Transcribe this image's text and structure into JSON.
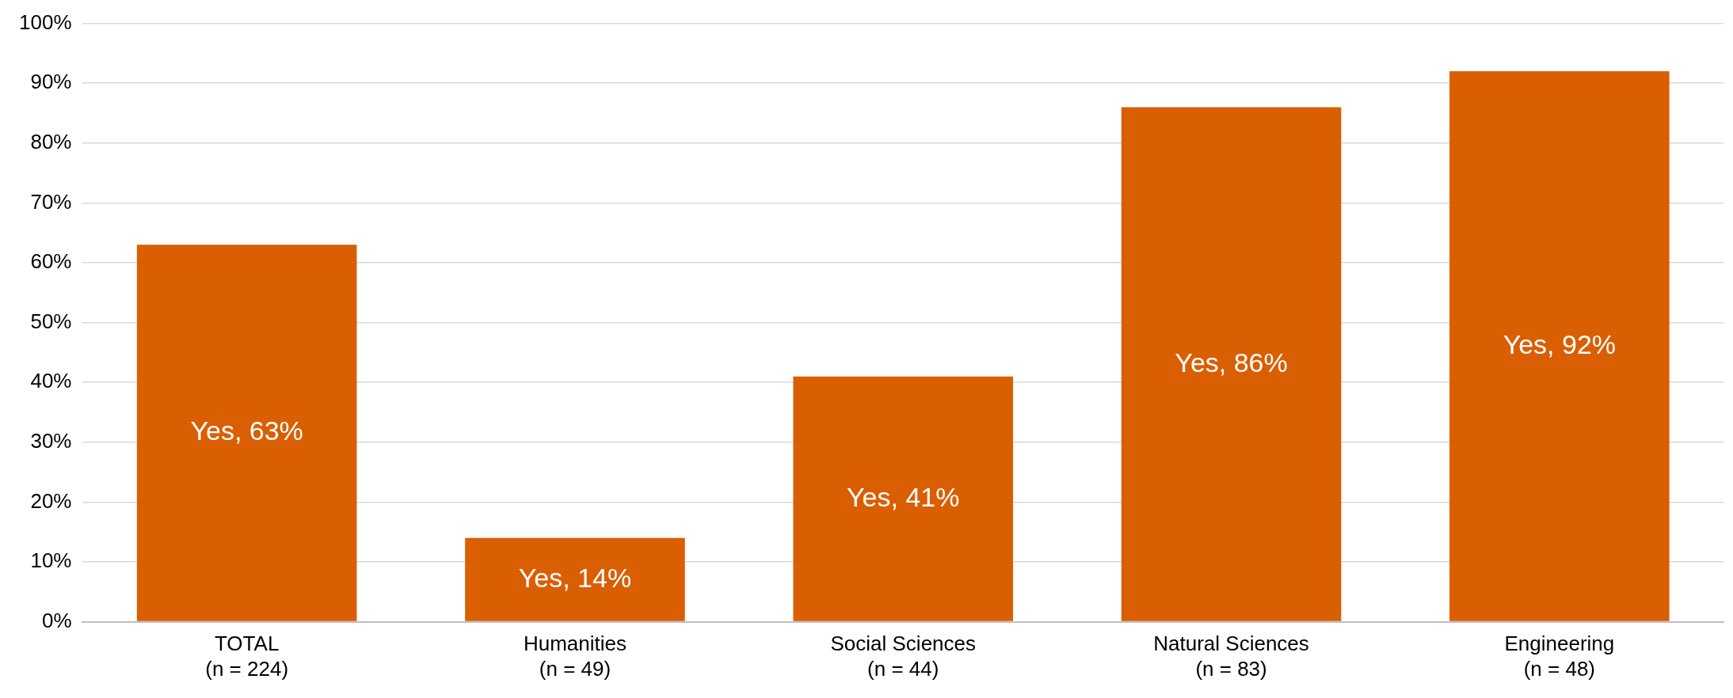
{
  "chart_data": {
    "type": "bar",
    "categories": [
      "TOTAL\n(n = 224)",
      "Humanities\n(n = 49)",
      "Social Sciences\n(n = 44)",
      "Natural Sciences\n(n = 83)",
      "Engineering\n(n = 48)"
    ],
    "values": [
      63,
      14,
      41,
      86,
      92
    ],
    "value_labels": [
      "Yes, 63%",
      "Yes, 14%",
      "Yes, 41%",
      "Yes, 86%",
      "Yes, 92%"
    ],
    "color": "#d95f02",
    "ylim": [
      0,
      100
    ],
    "yticks": [
      {
        "value": 0,
        "label": "0%"
      },
      {
        "value": 10,
        "label": "10%"
      },
      {
        "value": 20,
        "label": "20%"
      },
      {
        "value": 30,
        "label": "30%"
      },
      {
        "value": 40,
        "label": "40%"
      },
      {
        "value": 50,
        "label": "50%"
      },
      {
        "value": 60,
        "label": "60%"
      },
      {
        "value": 70,
        "label": "70%"
      },
      {
        "value": 80,
        "label": "80%"
      },
      {
        "value": 90,
        "label": "90%"
      },
      {
        "value": 100,
        "label": "100%"
      }
    ],
    "grid": "y",
    "legend": false
  }
}
